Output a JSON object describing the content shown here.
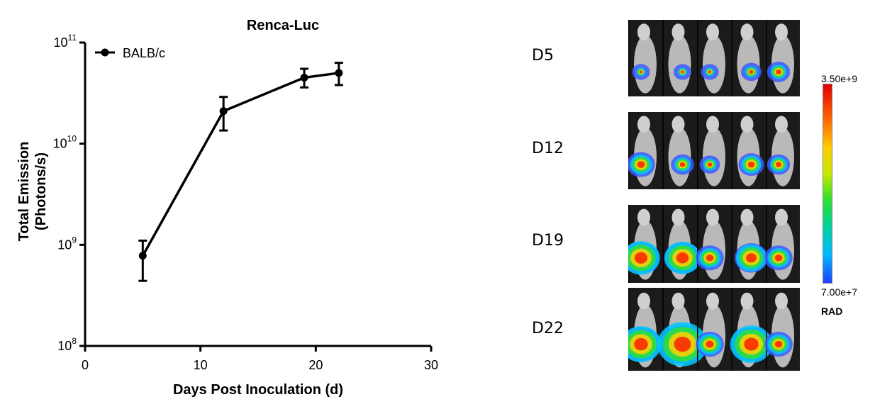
{
  "chart_data": {
    "type": "line",
    "title": "Renca-Luc",
    "xlabel": "Days Post Inoculation (d)",
    "ylabel_line1": "Total Emission",
    "ylabel_line2": "(Photons/s)",
    "xlim": [
      0,
      30
    ],
    "ylim": [
      100000000,
      100000000000
    ],
    "yscale": "log",
    "xticks": [
      "0",
      "10",
      "20",
      "30"
    ],
    "yticks": [
      {
        "base": "10",
        "exp": "8"
      },
      {
        "base": "10",
        "exp": "9"
      },
      {
        "base": "10",
        "exp": "10"
      },
      {
        "base": "10",
        "exp": "11"
      }
    ],
    "legend": {
      "position": "top-left"
    },
    "series": [
      {
        "name": "BALB/c",
        "x": [
          5,
          12,
          19,
          22
        ],
        "y": [
          780000000,
          21000000000,
          45000000000,
          50000000000
        ],
        "err_low": [
          440000000,
          13500000000,
          36000000000,
          38000000000
        ],
        "err_high": [
          1100000000,
          29000000000,
          55000000000,
          63000000000
        ]
      }
    ]
  },
  "imaging": {
    "days": [
      "D5",
      "D12",
      "D19",
      "D22"
    ],
    "scale_max": "3.50e+9",
    "scale_min": "7.00e+7",
    "scale_unit": "RAD"
  },
  "colors": {
    "line": "#000000",
    "panel_bg": "#1b1b1b",
    "mouse": "#b9b9b9"
  }
}
